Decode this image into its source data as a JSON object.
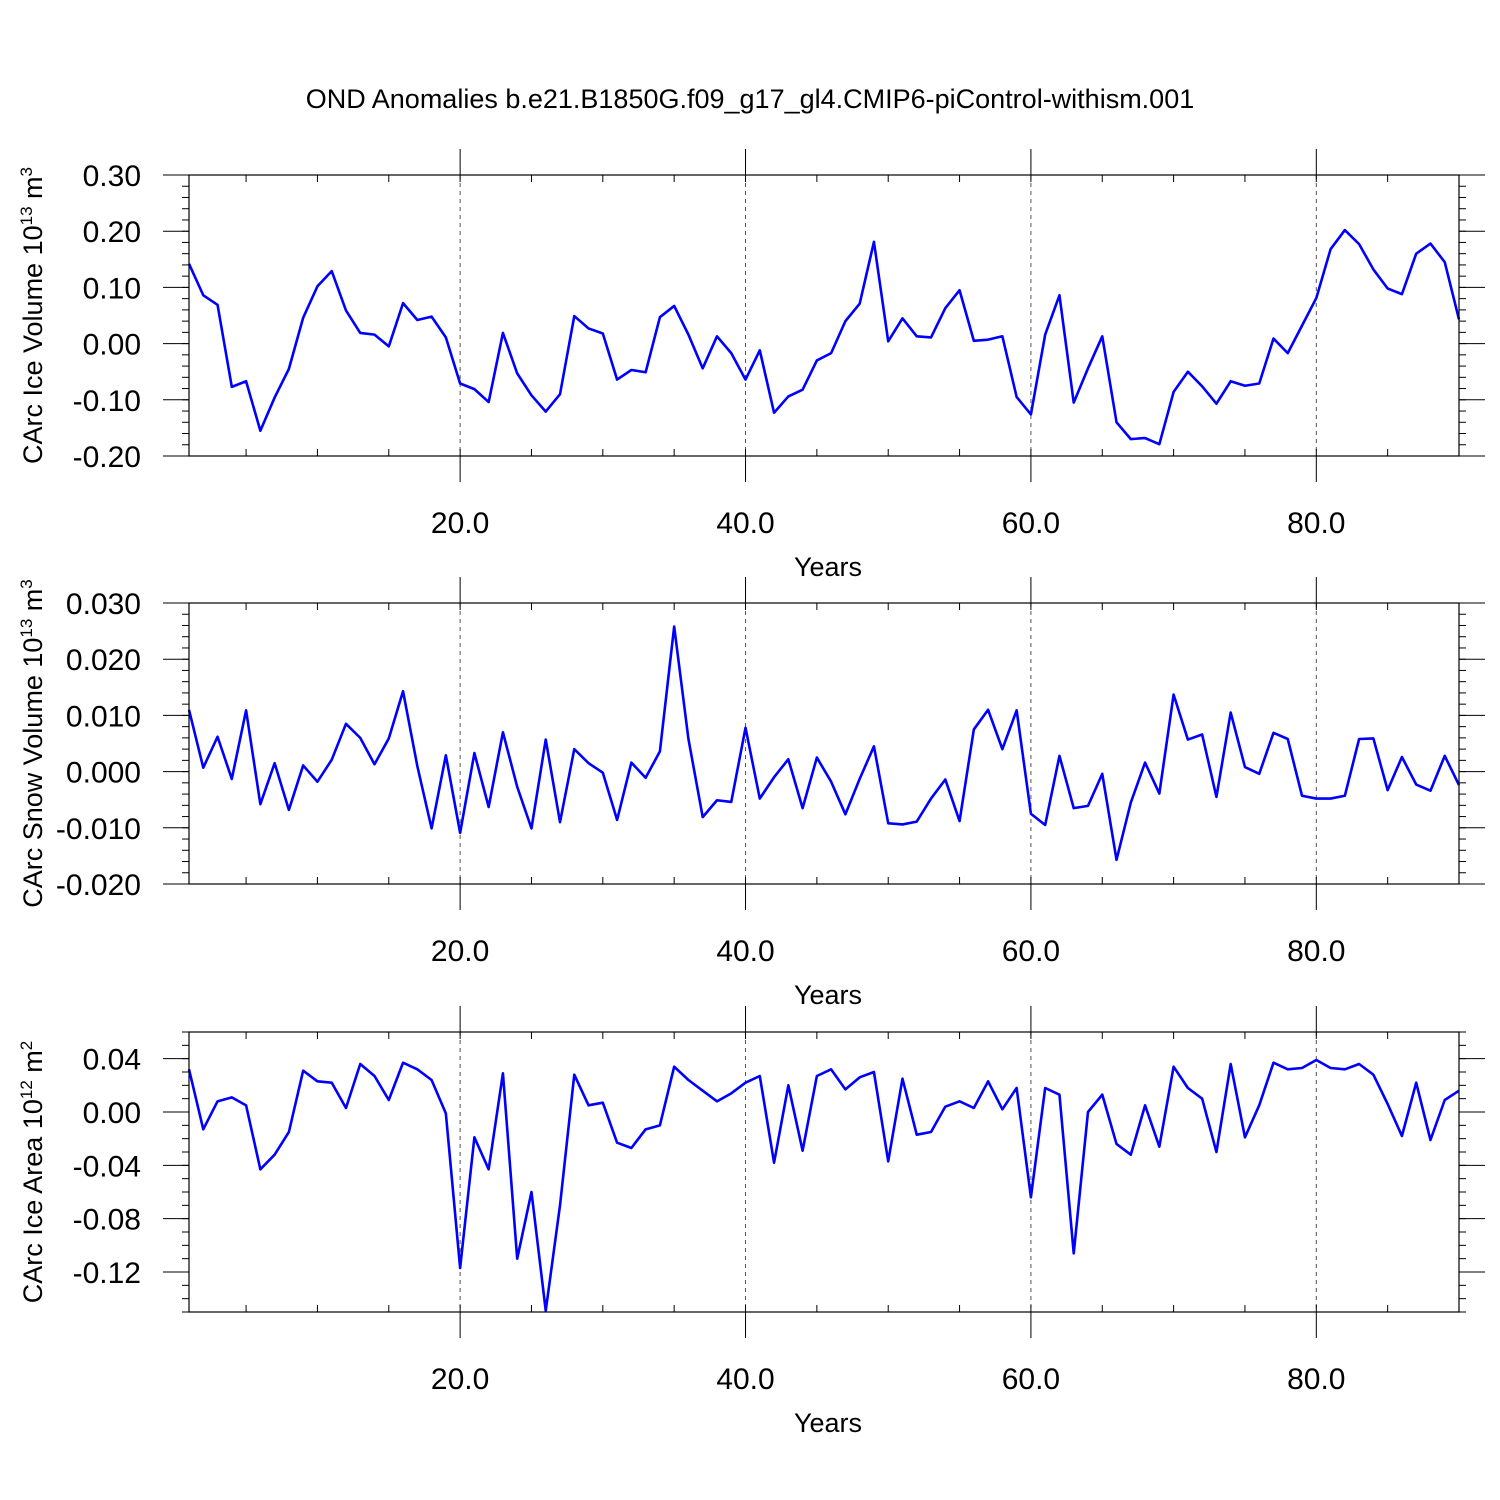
{
  "title": "OND Anomalies b.e21.B1850G.f09_g17_gl4.CMIP6-piControl-withism.001",
  "line_color": "#0000ff",
  "chart_data": [
    {
      "type": "line",
      "title": "",
      "xlabel": "Years",
      "ylabel_main": "CArc Ice Volume 10",
      "ylabel_exp": "13",
      "ylabel_unit": "m",
      "ylabel_unit_exp": "3",
      "xlim": [
        1,
        90
      ],
      "ylim": [
        -0.2,
        0.3
      ],
      "xticks": [
        20,
        40,
        60,
        80
      ],
      "xtick_labels": [
        "20.0",
        "40.0",
        "60.0",
        "80.0"
      ],
      "yticks": [
        -0.2,
        -0.1,
        0.0,
        0.1,
        0.2,
        0.3
      ],
      "ytick_labels": [
        "-0.20",
        "-0.10",
        "0.00",
        "0.10",
        "0.20",
        "0.30"
      ],
      "y_minor_step": 0.02,
      "grid": "vertical dashed at major x ticks",
      "x": [
        1,
        2,
        3,
        4,
        5,
        6,
        7,
        8,
        9,
        10,
        11,
        12,
        13,
        14,
        15,
        16,
        17,
        18,
        19,
        20,
        21,
        22,
        23,
        24,
        25,
        26,
        27,
        28,
        29,
        30,
        31,
        32,
        33,
        34,
        35,
        36,
        37,
        38,
        39,
        40,
        41,
        42,
        43,
        44,
        45,
        46,
        47,
        48,
        49,
        50,
        51,
        52,
        53,
        54,
        55,
        56,
        57,
        58,
        59,
        60,
        61,
        62,
        63,
        64,
        65,
        66,
        67,
        68,
        69,
        70,
        71,
        72,
        73,
        74,
        75,
        76,
        77,
        78,
        79,
        80,
        81,
        82,
        83,
        84,
        85,
        86,
        87,
        88,
        89,
        90
      ],
      "values": [
        0.142,
        0.086,
        0.069,
        -0.077,
        -0.067,
        -0.155,
        -0.096,
        -0.045,
        0.046,
        0.102,
        0.129,
        0.059,
        0.019,
        0.016,
        -0.005,
        0.072,
        0.042,
        0.048,
        0.011,
        -0.071,
        -0.081,
        -0.104,
        0.019,
        -0.053,
        -0.092,
        -0.121,
        -0.09,
        0.049,
        0.027,
        0.018,
        -0.064,
        -0.047,
        -0.051,
        0.047,
        0.067,
        0.016,
        -0.044,
        0.013,
        -0.017,
        -0.064,
        -0.012,
        -0.123,
        -0.094,
        -0.082,
        -0.03,
        -0.017,
        0.04,
        0.071,
        0.181,
        0.004,
        0.045,
        0.013,
        0.011,
        0.063,
        0.095,
        0.005,
        0.007,
        0.013,
        -0.095,
        -0.126,
        0.016,
        0.086,
        -0.105,
        -0.044,
        0.013,
        -0.14,
        -0.17,
        -0.168,
        -0.179,
        -0.086,
        -0.05,
        -0.076,
        -0.107,
        -0.067,
        -0.075,
        -0.071,
        0.009,
        -0.017,
        0.032,
        0.081,
        0.168,
        0.202,
        0.177,
        0.132,
        0.098,
        0.088,
        0.16,
        0.178,
        0.145,
        0.043
      ]
    },
    {
      "type": "line",
      "title": "",
      "xlabel": "Years",
      "ylabel_main": "CArc Snow Volume 10",
      "ylabel_exp": "13",
      "ylabel_unit": "m",
      "ylabel_unit_exp": "3",
      "xlim": [
        1,
        90
      ],
      "ylim": [
        -0.02,
        0.03
      ],
      "xticks": [
        20,
        40,
        60,
        80
      ],
      "xtick_labels": [
        "20.0",
        "40.0",
        "60.0",
        "80.0"
      ],
      "yticks": [
        -0.02,
        -0.01,
        0.0,
        0.01,
        0.02,
        0.03
      ],
      "ytick_labels": [
        "-0.020",
        "-0.010",
        "0.000",
        "0.010",
        "0.020",
        "0.030"
      ],
      "y_minor_step": 0.002,
      "grid": "vertical dashed at major x ticks",
      "x": [
        1,
        2,
        3,
        4,
        5,
        6,
        7,
        8,
        9,
        10,
        11,
        12,
        13,
        14,
        15,
        16,
        17,
        18,
        19,
        20,
        21,
        22,
        23,
        24,
        25,
        26,
        27,
        28,
        29,
        30,
        31,
        32,
        33,
        34,
        35,
        36,
        37,
        38,
        39,
        40,
        41,
        42,
        43,
        44,
        45,
        46,
        47,
        48,
        49,
        50,
        51,
        52,
        53,
        54,
        55,
        56,
        57,
        58,
        59,
        60,
        61,
        62,
        63,
        64,
        65,
        66,
        67,
        68,
        69,
        70,
        71,
        72,
        73,
        74,
        75,
        76,
        77,
        78,
        79,
        80,
        81,
        82,
        83,
        84,
        85,
        86,
        87,
        88,
        89,
        90
      ],
      "values": [
        0.011,
        0.0007,
        0.0062,
        -0.0013,
        0.0109,
        -0.0058,
        0.0015,
        -0.0068,
        0.0011,
        -0.0018,
        0.0021,
        0.0085,
        0.006,
        0.0013,
        0.0059,
        0.0143,
        0.001,
        -0.0101,
        0.0029,
        -0.0109,
        0.0033,
        -0.0063,
        0.007,
        -0.0027,
        -0.0101,
        0.0057,
        -0.009,
        0.004,
        0.0015,
        -0.0002,
        -0.0086,
        0.0016,
        -0.0011,
        0.0036,
        0.0258,
        0.0058,
        -0.0081,
        -0.0051,
        -0.0054,
        0.0078,
        -0.0048,
        -0.001,
        0.0022,
        -0.0065,
        0.0025,
        -0.0018,
        -0.0076,
        -0.0013,
        0.0045,
        -0.0092,
        -0.0094,
        -0.0089,
        -0.0048,
        -0.0014,
        -0.0088,
        0.0075,
        0.011,
        0.004,
        0.0109,
        -0.0075,
        -0.0095,
        0.0028,
        -0.0065,
        -0.0061,
        -0.0004,
        -0.0157,
        -0.0055,
        0.0016,
        -0.0039,
        0.0137,
        0.0057,
        0.0066,
        -0.0045,
        0.0105,
        0.0008,
        -0.0004,
        0.0069,
        0.0058,
        -0.0043,
        -0.0048,
        -0.0048,
        -0.0043,
        0.0058,
        0.0059,
        -0.0033,
        0.0026,
        -0.0023,
        -0.0034,
        0.0028,
        -0.0024
      ]
    },
    {
      "type": "line",
      "title": "",
      "xlabel": "Years",
      "ylabel_main": "CArc Ice Area 10",
      "ylabel_exp": "12",
      "ylabel_unit": "m",
      "ylabel_unit_exp": "2",
      "xlim": [
        1,
        90
      ],
      "ylim": [
        -0.15,
        0.06
      ],
      "xticks": [
        20,
        40,
        60,
        80
      ],
      "xtick_labels": [
        "20.0",
        "40.0",
        "60.0",
        "80.0"
      ],
      "yticks": [
        -0.12,
        -0.08,
        -0.04,
        0.0,
        0.04
      ],
      "ytick_labels": [
        "-0.12",
        "-0.08",
        "-0.04",
        "0.00",
        "0.04"
      ],
      "y_minor_step": 0.01,
      "grid": "vertical dashed at major x ticks",
      "x": [
        1,
        2,
        3,
        4,
        5,
        6,
        7,
        8,
        9,
        10,
        11,
        12,
        13,
        14,
        15,
        16,
        17,
        18,
        19,
        20,
        21,
        22,
        23,
        24,
        25,
        26,
        27,
        28,
        29,
        30,
        31,
        32,
        33,
        34,
        35,
        36,
        37,
        38,
        39,
        40,
        41,
        42,
        43,
        44,
        45,
        46,
        47,
        48,
        49,
        50,
        51,
        52,
        53,
        54,
        55,
        56,
        57,
        58,
        59,
        60,
        61,
        62,
        63,
        64,
        65,
        66,
        67,
        68,
        69,
        70,
        71,
        72,
        73,
        74,
        75,
        76,
        77,
        78,
        79,
        80,
        81,
        82,
        83,
        84,
        85,
        86,
        87,
        88,
        89,
        90
      ],
      "values": [
        0.032,
        -0.013,
        0.008,
        0.011,
        0.005,
        -0.043,
        -0.032,
        -0.015,
        0.031,
        0.023,
        0.022,
        0.003,
        0.036,
        0.027,
        0.009,
        0.037,
        0.032,
        0.024,
        -0.001,
        -0.117,
        -0.019,
        -0.043,
        0.029,
        -0.11,
        -0.06,
        -0.149,
        -0.07,
        0.028,
        0.005,
        0.007,
        -0.023,
        -0.027,
        -0.013,
        -0.01,
        0.034,
        0.024,
        0.016,
        0.008,
        0.014,
        0.022,
        0.027,
        -0.038,
        0.02,
        -0.029,
        0.027,
        0.032,
        0.017,
        0.026,
        0.03,
        -0.037,
        0.025,
        -0.017,
        -0.015,
        0.004,
        0.008,
        0.003,
        0.023,
        0.002,
        0.018,
        -0.064,
        0.018,
        0.013,
        -0.106,
        0.0,
        0.013,
        -0.024,
        -0.032,
        0.005,
        -0.026,
        0.034,
        0.018,
        0.01,
        -0.03,
        0.036,
        -0.019,
        0.005,
        0.037,
        0.032,
        0.033,
        0.039,
        0.033,
        0.032,
        0.036,
        0.028,
        0.006,
        -0.018,
        0.022,
        -0.021,
        0.009,
        0.016
      ]
    }
  ]
}
